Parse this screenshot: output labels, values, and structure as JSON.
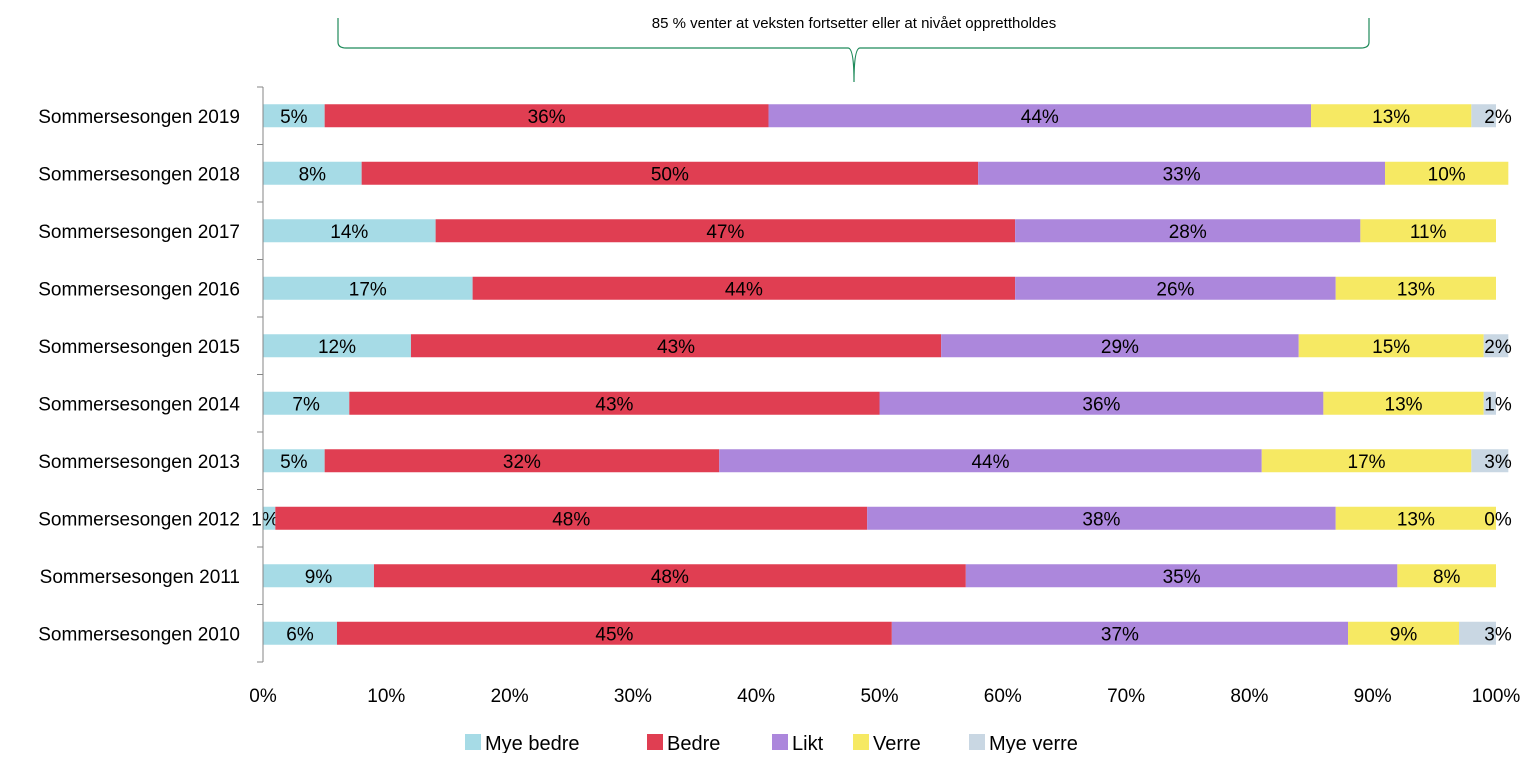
{
  "chart_data": {
    "type": "bar",
    "orientation": "horizontal",
    "stacked": true,
    "title": "",
    "annotation": "85 % venter at veksten fortsetter eller at nivået opprettholdes",
    "categories": [
      "Sommersesongen 2019",
      "Sommersesongen 2018",
      "Sommersesongen 2017",
      "Sommersesongen 2016",
      "Sommersesongen 2015",
      "Sommersesongen 2014",
      "Sommersesongen 2013",
      "Sommersesongen 2012",
      "Sommersesongen 2011",
      "Sommersesongen 2010"
    ],
    "series": [
      {
        "name": "Mye bedre",
        "color": "#a6dbe6",
        "values": [
          5,
          8,
          14,
          17,
          12,
          7,
          5,
          1,
          9,
          6
        ]
      },
      {
        "name": "Bedre",
        "color": "#e03e52",
        "values": [
          36,
          50,
          47,
          44,
          43,
          43,
          32,
          48,
          48,
          45
        ]
      },
      {
        "name": "Likt",
        "color": "#ac87dc",
        "values": [
          44,
          33,
          28,
          26,
          29,
          36,
          44,
          38,
          35,
          37
        ]
      },
      {
        "name": "Verre",
        "color": "#f6e963",
        "values": [
          13,
          10,
          11,
          13,
          15,
          13,
          17,
          13,
          8,
          9
        ]
      },
      {
        "name": "Mye verre",
        "color": "#c9d7e3",
        "values": [
          2,
          0,
          0,
          0,
          2,
          1,
          3,
          0,
          0,
          3
        ]
      }
    ],
    "data_labels": [
      [
        "5%",
        "36%",
        "44%",
        "13%",
        "2%"
      ],
      [
        "8%",
        "50%",
        "33%",
        "10%",
        ""
      ],
      [
        "14%",
        "47%",
        "28%",
        "11%",
        ""
      ],
      [
        "17%",
        "44%",
        "26%",
        "13%",
        ""
      ],
      [
        "12%",
        "43%",
        "29%",
        "15%",
        "2%"
      ],
      [
        "7%",
        "43%",
        "36%",
        "13%",
        "1%"
      ],
      [
        "5%",
        "32%",
        "44%",
        "17%",
        "3%"
      ],
      [
        "1%",
        "48%",
        "38%",
        "13%",
        "0%"
      ],
      [
        "9%",
        "48%",
        "35%",
        "8%",
        ""
      ],
      [
        "6%",
        "45%",
        "37%",
        "9%",
        "3%"
      ]
    ],
    "xlim": [
      0,
      100
    ],
    "x_ticks": [
      "0%",
      "10%",
      "20%",
      "30%",
      "40%",
      "50%",
      "60%",
      "70%",
      "80%",
      "90%",
      "100%"
    ],
    "grid": false,
    "legend_position": "bottom"
  }
}
